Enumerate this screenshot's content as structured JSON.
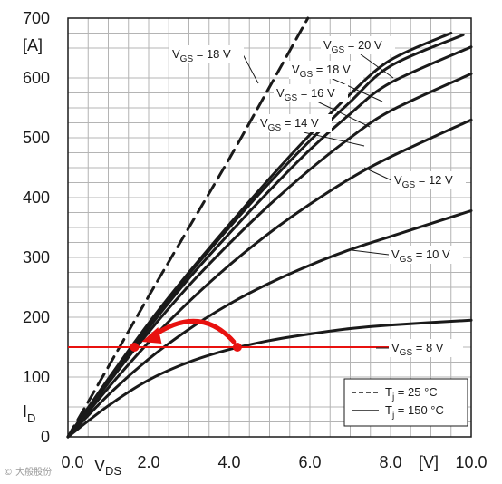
{
  "watermark": "© 大般股份",
  "chart_data": {
    "type": "line",
    "xlabel": "V",
    "xlabel_sub": "DS",
    "ylabel": "I",
    "ylabel_sub": "D",
    "x_unit": "[V]",
    "y_unit": "[A]",
    "xlim": [
      0,
      10
    ],
    "ylim": [
      0,
      700
    ],
    "x_ticks": [
      {
        "value": 0,
        "label": "0.0"
      },
      {
        "value": 2,
        "label": "2.0"
      },
      {
        "value": 4,
        "label": "4.0"
      },
      {
        "value": 6,
        "label": "6.0"
      },
      {
        "value": 8,
        "label": "8.0"
      },
      {
        "value": 10,
        "label": "10.0"
      }
    ],
    "y_ticks": [
      {
        "value": 0,
        "label": "0"
      },
      {
        "value": 100,
        "label": "100"
      },
      {
        "value": 200,
        "label": "200"
      },
      {
        "value": 300,
        "label": "300"
      },
      {
        "value": 400,
        "label": "400"
      },
      {
        "value": 500,
        "label": "500"
      },
      {
        "value": 600,
        "label": "600"
      },
      {
        "value": 700,
        "label": "700"
      }
    ],
    "grid": true,
    "series": [
      {
        "name": "Tj = 25 °C, VGS = 18 V",
        "style": "dashed",
        "label_prefix": "V",
        "label_sub": "GS",
        "label_suffix": " = 18 V",
        "points": [
          [
            0,
            0
          ],
          [
            1,
            117
          ],
          [
            2,
            235
          ],
          [
            3,
            350
          ],
          [
            4,
            465
          ],
          [
            5,
            585
          ],
          [
            5.95,
            700
          ]
        ]
      },
      {
        "name": "VGS = 20 V",
        "style": "solid",
        "label_prefix": "V",
        "label_sub": "GS",
        "label_suffix": " = 20 V",
        "points": [
          [
            0,
            0
          ],
          [
            1,
            97
          ],
          [
            2,
            190
          ],
          [
            3,
            275
          ],
          [
            4,
            355
          ],
          [
            5,
            432
          ],
          [
            6,
            505
          ],
          [
            7,
            573
          ],
          [
            8,
            630
          ],
          [
            9.5,
            675
          ]
        ]
      },
      {
        "name": "VGS = 18 V",
        "style": "solid",
        "label_prefix": "V",
        "label_sub": "GS",
        "label_suffix": " = 18 V",
        "points": [
          [
            0,
            0
          ],
          [
            1,
            95
          ],
          [
            2,
            187
          ],
          [
            3,
            272
          ],
          [
            4,
            350
          ],
          [
            5,
            425
          ],
          [
            6,
            495
          ],
          [
            7,
            560
          ],
          [
            8,
            620
          ],
          [
            9.8,
            672
          ]
        ]
      },
      {
        "name": "VGS = 16 V",
        "style": "solid",
        "label_prefix": "V",
        "label_sub": "GS",
        "label_suffix": " = 16 V",
        "points": [
          [
            0,
            0
          ],
          [
            1,
            93
          ],
          [
            2,
            182
          ],
          [
            3,
            265
          ],
          [
            4,
            340
          ],
          [
            5,
            412
          ],
          [
            6,
            480
          ],
          [
            7,
            540
          ],
          [
            8,
            592
          ],
          [
            10,
            652
          ]
        ]
      },
      {
        "name": "VGS = 14 V",
        "style": "solid",
        "label_prefix": "V",
        "label_sub": "GS",
        "label_suffix": " = 14 V",
        "points": [
          [
            0,
            0
          ],
          [
            1,
            90
          ],
          [
            2,
            175
          ],
          [
            3,
            253
          ],
          [
            4,
            323
          ],
          [
            5,
            388
          ],
          [
            6,
            447
          ],
          [
            7,
            500
          ],
          [
            8,
            545
          ],
          [
            10,
            607
          ]
        ]
      },
      {
        "name": "VGS = 12 V",
        "style": "solid",
        "label_prefix": "V",
        "label_sub": "GS",
        "label_suffix": " = 12 V",
        "points": [
          [
            0,
            0
          ],
          [
            1,
            82
          ],
          [
            2,
            158
          ],
          [
            3,
            226
          ],
          [
            4,
            287
          ],
          [
            5,
            341
          ],
          [
            6,
            389
          ],
          [
            7,
            432
          ],
          [
            8,
            468
          ],
          [
            10,
            530
          ]
        ]
      },
      {
        "name": "VGS = 10 V",
        "style": "solid",
        "label_prefix": "V",
        "label_sub": "GS",
        "label_suffix": " = 10 V",
        "points": [
          [
            0,
            0
          ],
          [
            1,
            70
          ],
          [
            2,
            130
          ],
          [
            3,
            180
          ],
          [
            4,
            222
          ],
          [
            5,
            257
          ],
          [
            6,
            287
          ],
          [
            7,
            313
          ],
          [
            8,
            335
          ],
          [
            10,
            378
          ]
        ]
      },
      {
        "name": "VGS = 8 V",
        "style": "solid",
        "label_prefix": "V",
        "label_sub": "GS",
        "label_suffix": " = 8 V",
        "points": [
          [
            0,
            0
          ],
          [
            1,
            52
          ],
          [
            2,
            95
          ],
          [
            3,
            125
          ],
          [
            4,
            146
          ],
          [
            5,
            161
          ],
          [
            6,
            172
          ],
          [
            7,
            181
          ],
          [
            8,
            187
          ],
          [
            10,
            195
          ]
        ]
      }
    ],
    "legend": {
      "placement": "bottom-right",
      "items": [
        {
          "style": "dashed",
          "prefix": "T",
          "sub": "j",
          "suffix": " = 25 °C"
        },
        {
          "style": "solid",
          "prefix": "T",
          "sub": "j",
          "suffix": " = 150 °C"
        }
      ]
    },
    "annotations": {
      "color": "#e8110f",
      "hline_y": 150,
      "hline_x": [
        0,
        8
      ],
      "point_a": [
        4.2,
        150
      ],
      "point_b": [
        1.65,
        150
      ]
    }
  }
}
